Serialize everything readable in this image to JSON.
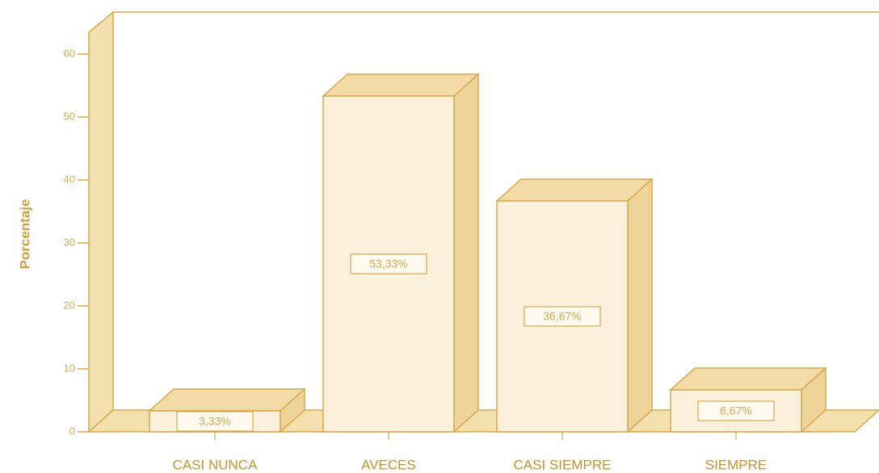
{
  "chart_data": {
    "type": "bar",
    "y_label": "Porcentaje",
    "categories": [
      "CASI NUNCA",
      "AVECES",
      "CASI SIEMPRE",
      "SIEMPRE"
    ],
    "values": [
      3.33,
      53.33,
      36.67,
      6.67
    ],
    "value_labels": [
      "3,33%",
      "53,33%",
      "36,67%",
      "6,67%"
    ],
    "ylim": [
      0,
      60
    ],
    "yticks": [
      0,
      10,
      20,
      30,
      40,
      50,
      60
    ],
    "color": "#fbf0dc"
  }
}
